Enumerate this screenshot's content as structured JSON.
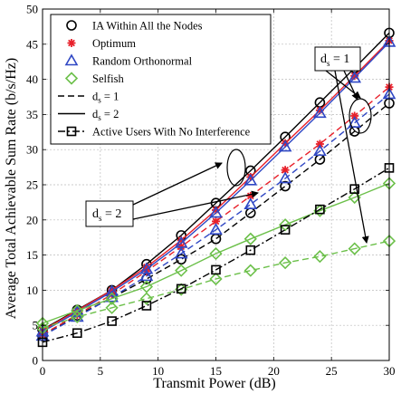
{
  "chart_data": {
    "type": "line",
    "xlabel": "Transmit Power (dB)",
    "ylabel": "Average Total Achievable Sum Rate (b/s/Hz)",
    "xlim": [
      0,
      30
    ],
    "ylim": [
      0,
      50
    ],
    "x_ticks": [
      "0",
      "5",
      "10",
      "15",
      "20",
      "25",
      "30"
    ],
    "y_ticks": [
      "0",
      "5",
      "10",
      "15",
      "20",
      "25",
      "30",
      "35",
      "40",
      "45",
      "50"
    ],
    "grid": true,
    "legend_position": "top-left",
    "x": [
      0,
      3,
      6,
      9,
      12,
      15,
      18,
      21,
      24,
      27,
      30
    ],
    "legend": [
      {
        "label": "IA Within All the Nodes",
        "marker": "circle",
        "color": "#000000",
        "line": "none"
      },
      {
        "label": "Optimum",
        "marker": "star",
        "color": "#e8202a",
        "line": "none"
      },
      {
        "label": "Random Orthonormal",
        "marker": "triangle",
        "color": "#2f47c4",
        "line": "none"
      },
      {
        "label": "Selfish",
        "marker": "diamond",
        "color": "#6cc04a",
        "line": "none"
      },
      {
        "label_main": "d",
        "label_sub": "s",
        "label_rest": " = 1",
        "marker": "none",
        "color": "#000000",
        "line": "dashed"
      },
      {
        "label_main": "d",
        "label_sub": "s",
        "label_rest": " = 2",
        "marker": "none",
        "color": "#000000",
        "line": "solid"
      },
      {
        "label": "Active Users With No Interference",
        "marker": "square",
        "color": "#000000",
        "line": "dashdot"
      }
    ],
    "series": [
      {
        "name": "IA Within All the Nodes, ds = 2",
        "marker": "circle",
        "color": "#000000",
        "dash": "solid",
        "values": [
          4.4,
          7.2,
          10.0,
          13.7,
          17.8,
          22.4,
          27.0,
          31.8,
          36.7,
          41.6,
          46.6
        ]
      },
      {
        "name": "IA Within All the Nodes, ds = 1",
        "marker": "circle",
        "color": "#000000",
        "dash": "dashed",
        "values": [
          3.5,
          6.4,
          8.9,
          11.6,
          14.4,
          17.3,
          21.0,
          24.8,
          28.6,
          32.6,
          36.6
        ]
      },
      {
        "name": "Optimum, ds = 2",
        "marker": "star",
        "color": "#e8202a",
        "dash": "solid",
        "values": [
          4.3,
          7.1,
          10.0,
          13.3,
          17.1,
          21.4,
          26.1,
          30.9,
          35.6,
          40.5,
          45.5
        ]
      },
      {
        "name": "Optimum, ds = 1",
        "marker": "star",
        "color": "#e8202a",
        "dash": "dashed",
        "values": [
          3.7,
          6.5,
          9.4,
          12.7,
          16.2,
          19.8,
          23.4,
          27.1,
          30.8,
          34.8,
          38.9
        ]
      },
      {
        "name": "Random Orthonormal, ds = 2",
        "marker": "triangle",
        "color": "#2f47c4",
        "dash": "solid",
        "values": [
          4.1,
          6.9,
          9.8,
          13.0,
          16.7,
          21.0,
          25.6,
          30.4,
          35.2,
          40.2,
          45.3
        ]
      },
      {
        "name": "Random Orthonormal, ds = 1",
        "marker": "triangle",
        "color": "#2f47c4",
        "dash": "dashed",
        "values": [
          3.5,
          6.2,
          9.0,
          12.0,
          15.2,
          18.6,
          22.2,
          25.9,
          29.8,
          33.8,
          37.9
        ]
      },
      {
        "name": "Selfish, ds = 2",
        "marker": "diamond",
        "color": "#6cc04a",
        "dash": "solid",
        "values": [
          5.3,
          7.1,
          8.8,
          10.5,
          12.8,
          15.2,
          17.3,
          19.3,
          21.3,
          23.2,
          25.2
        ]
      },
      {
        "name": "Selfish, ds = 1",
        "marker": "diamond",
        "color": "#6cc04a",
        "dash": "dashed",
        "values": [
          4.6,
          6.2,
          7.5,
          8.8,
          10.1,
          11.6,
          12.8,
          13.9,
          14.8,
          15.9,
          17.0
        ]
      },
      {
        "name": "Active Users With No Interference",
        "marker": "square",
        "color": "#000000",
        "dash": "dashdot",
        "values": [
          2.6,
          3.9,
          5.6,
          7.8,
          10.2,
          12.9,
          15.7,
          18.6,
          21.5,
          24.4,
          27.4
        ]
      }
    ],
    "annotations": [
      {
        "text_main": "d",
        "text_sub": "s",
        "text_rest": " = 1"
      },
      {
        "text_main": "d",
        "text_sub": "s",
        "text_rest": " = 2"
      }
    ]
  }
}
